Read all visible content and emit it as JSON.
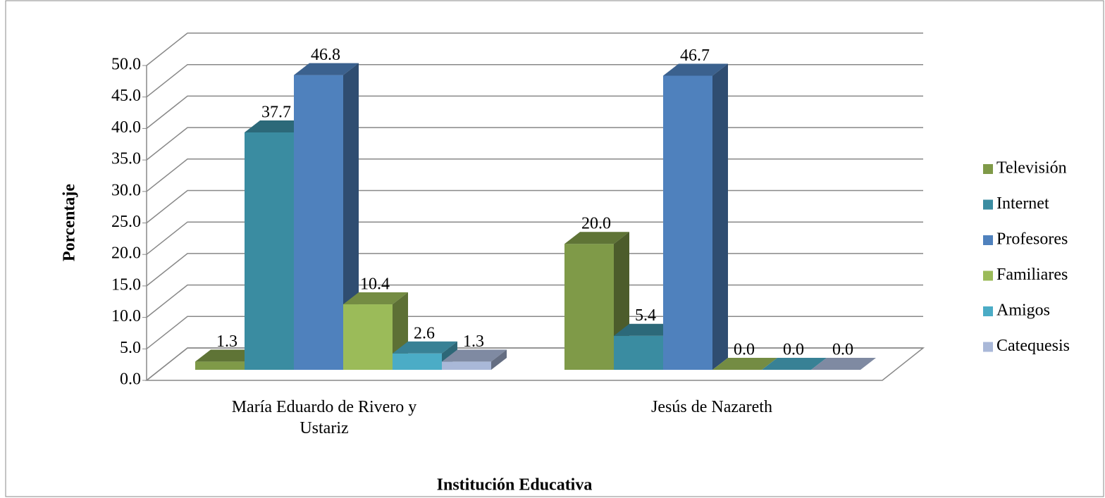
{
  "chart_data": {
    "type": "bar3d",
    "categories": [
      "María Eduardo de Rivero y Ustariz",
      "Jesús de Nazareth"
    ],
    "x_label": "Institución Educativa",
    "y_label": "Porcentaje",
    "ylim": [
      0,
      50
    ],
    "yticks": [
      {
        "value": 0,
        "label": "0.0"
      },
      {
        "value": 5,
        "label": "5.0"
      },
      {
        "value": 10,
        "label": "10.0"
      },
      {
        "value": 15,
        "label": "15.0"
      },
      {
        "value": 20,
        "label": "20.0"
      },
      {
        "value": 25,
        "label": "25.0"
      },
      {
        "value": 30,
        "label": "30.0"
      },
      {
        "value": 35,
        "label": "35.0"
      },
      {
        "value": 40,
        "label": "40.0"
      },
      {
        "value": 45,
        "label": "45.0"
      },
      {
        "value": 50,
        "label": "50.0"
      }
    ],
    "grid": true,
    "legend": "right",
    "series": [
      {
        "name": "Televisión",
        "color": "#7f9a48",
        "values": [
          1.3,
          20.0
        ],
        "value_labels": [
          "1.3",
          "20.0"
        ]
      },
      {
        "name": "Internet",
        "color": "#3a8ca1",
        "values": [
          37.7,
          5.4
        ],
        "value_labels": [
          "37.7",
          "5.4"
        ]
      },
      {
        "name": "Profesores",
        "color": "#4f81bd",
        "values": [
          46.8,
          46.7
        ],
        "value_labels": [
          "46.8",
          "46.7"
        ]
      },
      {
        "name": "Familiares",
        "color": "#9bbb59",
        "values": [
          10.4,
          0.0
        ],
        "value_labels": [
          "10.4",
          "0.0"
        ]
      },
      {
        "name": "Amigos",
        "color": "#4bacc6",
        "values": [
          2.6,
          0.0
        ],
        "value_labels": [
          "2.6",
          "0.0"
        ]
      },
      {
        "name": "Catequesis",
        "color": "#a9b8d8",
        "values": [
          1.3,
          0.0
        ],
        "value_labels": [
          "1.3",
          "0.0"
        ]
      }
    ]
  }
}
